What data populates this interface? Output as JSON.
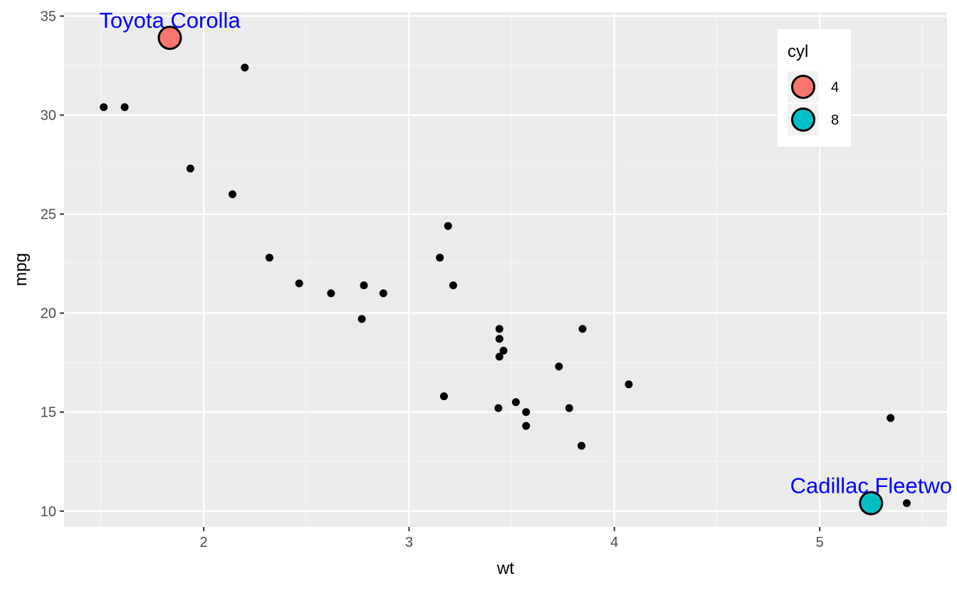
{
  "chart_data": {
    "type": "scatter",
    "xlabel": "wt",
    "ylabel": "mpg",
    "xlim": [
      1.32,
      5.62
    ],
    "ylim": [
      9.2,
      35.2
    ],
    "x_ticks": [
      2,
      3,
      4,
      5
    ],
    "y_ticks": [
      10,
      15,
      20,
      25,
      30,
      35
    ],
    "grid": true,
    "legend_position": "top-right",
    "colors": {
      "panel": "#ebebeb",
      "grid_major": "#ffffff",
      "grid_minor": "#f5f5f5",
      "point": "#000000",
      "annotation_text": "#0000ff"
    },
    "points": [
      {
        "x": 2.62,
        "y": 21.0
      },
      {
        "x": 2.875,
        "y": 21.0
      },
      {
        "x": 2.32,
        "y": 22.8
      },
      {
        "x": 3.215,
        "y": 21.4
      },
      {
        "x": 3.44,
        "y": 18.7
      },
      {
        "x": 3.46,
        "y": 18.1
      },
      {
        "x": 3.57,
        "y": 14.3
      },
      {
        "x": 3.19,
        "y": 24.4
      },
      {
        "x": 3.15,
        "y": 22.8
      },
      {
        "x": 3.44,
        "y": 19.2
      },
      {
        "x": 3.44,
        "y": 17.8
      },
      {
        "x": 4.07,
        "y": 16.4
      },
      {
        "x": 3.73,
        "y": 17.3
      },
      {
        "x": 3.78,
        "y": 15.2
      },
      {
        "x": 5.25,
        "y": 10.4
      },
      {
        "x": 5.424,
        "y": 10.4
      },
      {
        "x": 5.345,
        "y": 14.7
      },
      {
        "x": 2.2,
        "y": 32.4
      },
      {
        "x": 1.615,
        "y": 30.4
      },
      {
        "x": 1.835,
        "y": 33.9
      },
      {
        "x": 2.465,
        "y": 21.5
      },
      {
        "x": 3.52,
        "y": 15.5
      },
      {
        "x": 3.435,
        "y": 15.2
      },
      {
        "x": 3.84,
        "y": 13.3
      },
      {
        "x": 3.845,
        "y": 19.2
      },
      {
        "x": 1.935,
        "y": 27.3
      },
      {
        "x": 2.14,
        "y": 26.0
      },
      {
        "x": 1.513,
        "y": 30.4
      },
      {
        "x": 3.17,
        "y": 15.8
      },
      {
        "x": 2.77,
        "y": 19.7
      },
      {
        "x": 3.57,
        "y": 15.0
      },
      {
        "x": 2.78,
        "y": 21.4
      }
    ],
    "highlighted": [
      {
        "label": "Toyota Corolla",
        "x": 1.835,
        "y": 33.9,
        "cyl": "4",
        "color": "#f8766d"
      },
      {
        "label": "Cadillac Fleetwo",
        "x": 5.25,
        "y": 10.4,
        "cyl": "8",
        "color": "#00bfc4"
      }
    ],
    "legend": {
      "title": "cyl",
      "items": [
        {
          "label": "4",
          "color": "#f8766d"
        },
        {
          "label": "8",
          "color": "#00bfc4"
        }
      ]
    }
  }
}
